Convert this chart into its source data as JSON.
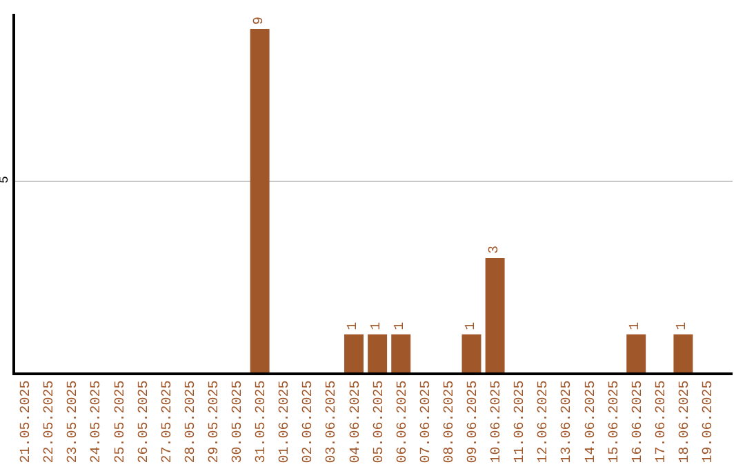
{
  "chart_data": {
    "type": "bar",
    "categories": [
      "21.05.2025",
      "22.05.2025",
      "23.05.2025",
      "24.05.2025",
      "25.05.2025",
      "26.05.2025",
      "27.05.2025",
      "28.05.2025",
      "29.05.2025",
      "30.05.2025",
      "31.05.2025",
      "01.06.2025",
      "02.06.2025",
      "03.06.2025",
      "04.06.2025",
      "05.06.2025",
      "06.06.2025",
      "07.06.2025",
      "08.06.2025",
      "09.06.2025",
      "10.06.2025",
      "11.06.2025",
      "12.06.2025",
      "13.06.2025",
      "14.06.2025",
      "15.06.2025",
      "16.06.2025",
      "17.06.2025",
      "18.06.2025",
      "19.06.2025"
    ],
    "values": [
      0,
      0,
      0,
      0,
      0,
      0,
      0,
      0,
      0,
      0,
      9,
      0,
      0,
      0,
      1,
      1,
      1,
      0,
      0,
      1,
      3,
      0,
      0,
      0,
      0,
      0,
      1,
      0,
      1,
      0
    ],
    "value_labels": [
      null,
      null,
      null,
      null,
      null,
      null,
      null,
      null,
      null,
      null,
      "9",
      null,
      null,
      null,
      "1",
      "1",
      "1",
      null,
      null,
      "1",
      "3",
      null,
      null,
      null,
      null,
      null,
      "1",
      null,
      "1",
      null
    ],
    "color": "#a0572a",
    "ylim": [
      0,
      9.4
    ],
    "yticks": [
      5
    ],
    "grid": "y"
  }
}
